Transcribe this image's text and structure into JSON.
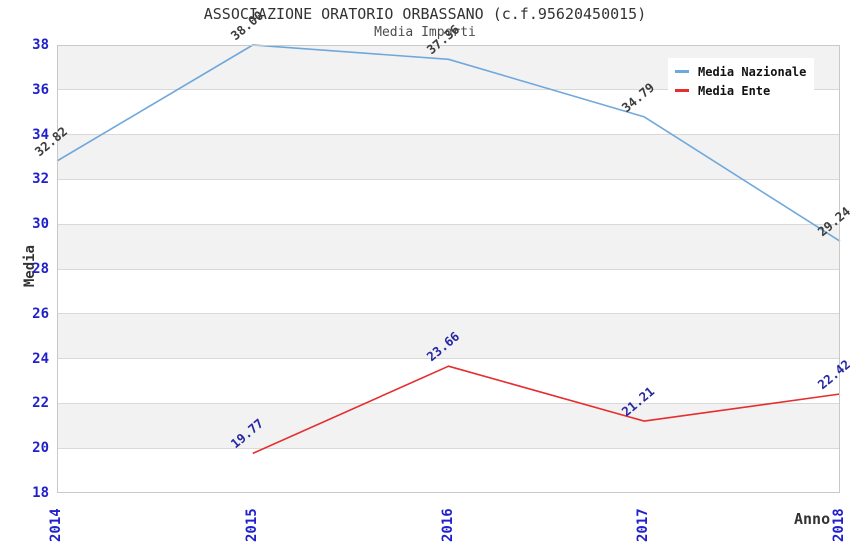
{
  "chart_data": {
    "type": "line",
    "title": "ASSOCIAZIONE ORATORIO ORBASSANO (c.f.95620450015)",
    "subtitle": "Media Importi",
    "xlabel": "Anno",
    "ylabel": "Media",
    "categories": [
      "2014",
      "2015",
      "2016",
      "2017",
      "2018"
    ],
    "y_ticks": [
      38,
      36,
      34,
      32,
      30,
      28,
      26,
      24,
      22,
      20,
      18
    ],
    "ylim": [
      18,
      38
    ],
    "grid": "horizontal",
    "background_bands": "alternating",
    "legend_position": "top-right",
    "series": [
      {
        "name": "Media Nazionale",
        "color": "#6fa8dc",
        "label_color": "#3d3d3d",
        "x": [
          "2014",
          "2015",
          "2016",
          "2017",
          "2018"
        ],
        "values": [
          32.82,
          38.0,
          37.36,
          34.79,
          29.24
        ],
        "labels": [
          "32.82",
          "38.00",
          "37.36",
          "34.79",
          "29.24"
        ]
      },
      {
        "name": "Media Ente",
        "color": "#e62e2e",
        "label_color": "#2727a3",
        "x": [
          "2015",
          "2016",
          "2017",
          "2018"
        ],
        "values": [
          19.77,
          23.66,
          21.21,
          22.42
        ],
        "labels": [
          "19.77",
          "23.66",
          "21.21",
          "22.42"
        ]
      }
    ]
  },
  "style": {
    "tick_color": "#2121cc",
    "band_color": "#f2f2f2",
    "grid_color": "#d9d9d9",
    "border_color": "#c9c9c9",
    "title_color": "#333333",
    "subtitle_color": "#4d4d4d",
    "axis_label_color": "#333333",
    "legend_background": "#ffffff"
  }
}
